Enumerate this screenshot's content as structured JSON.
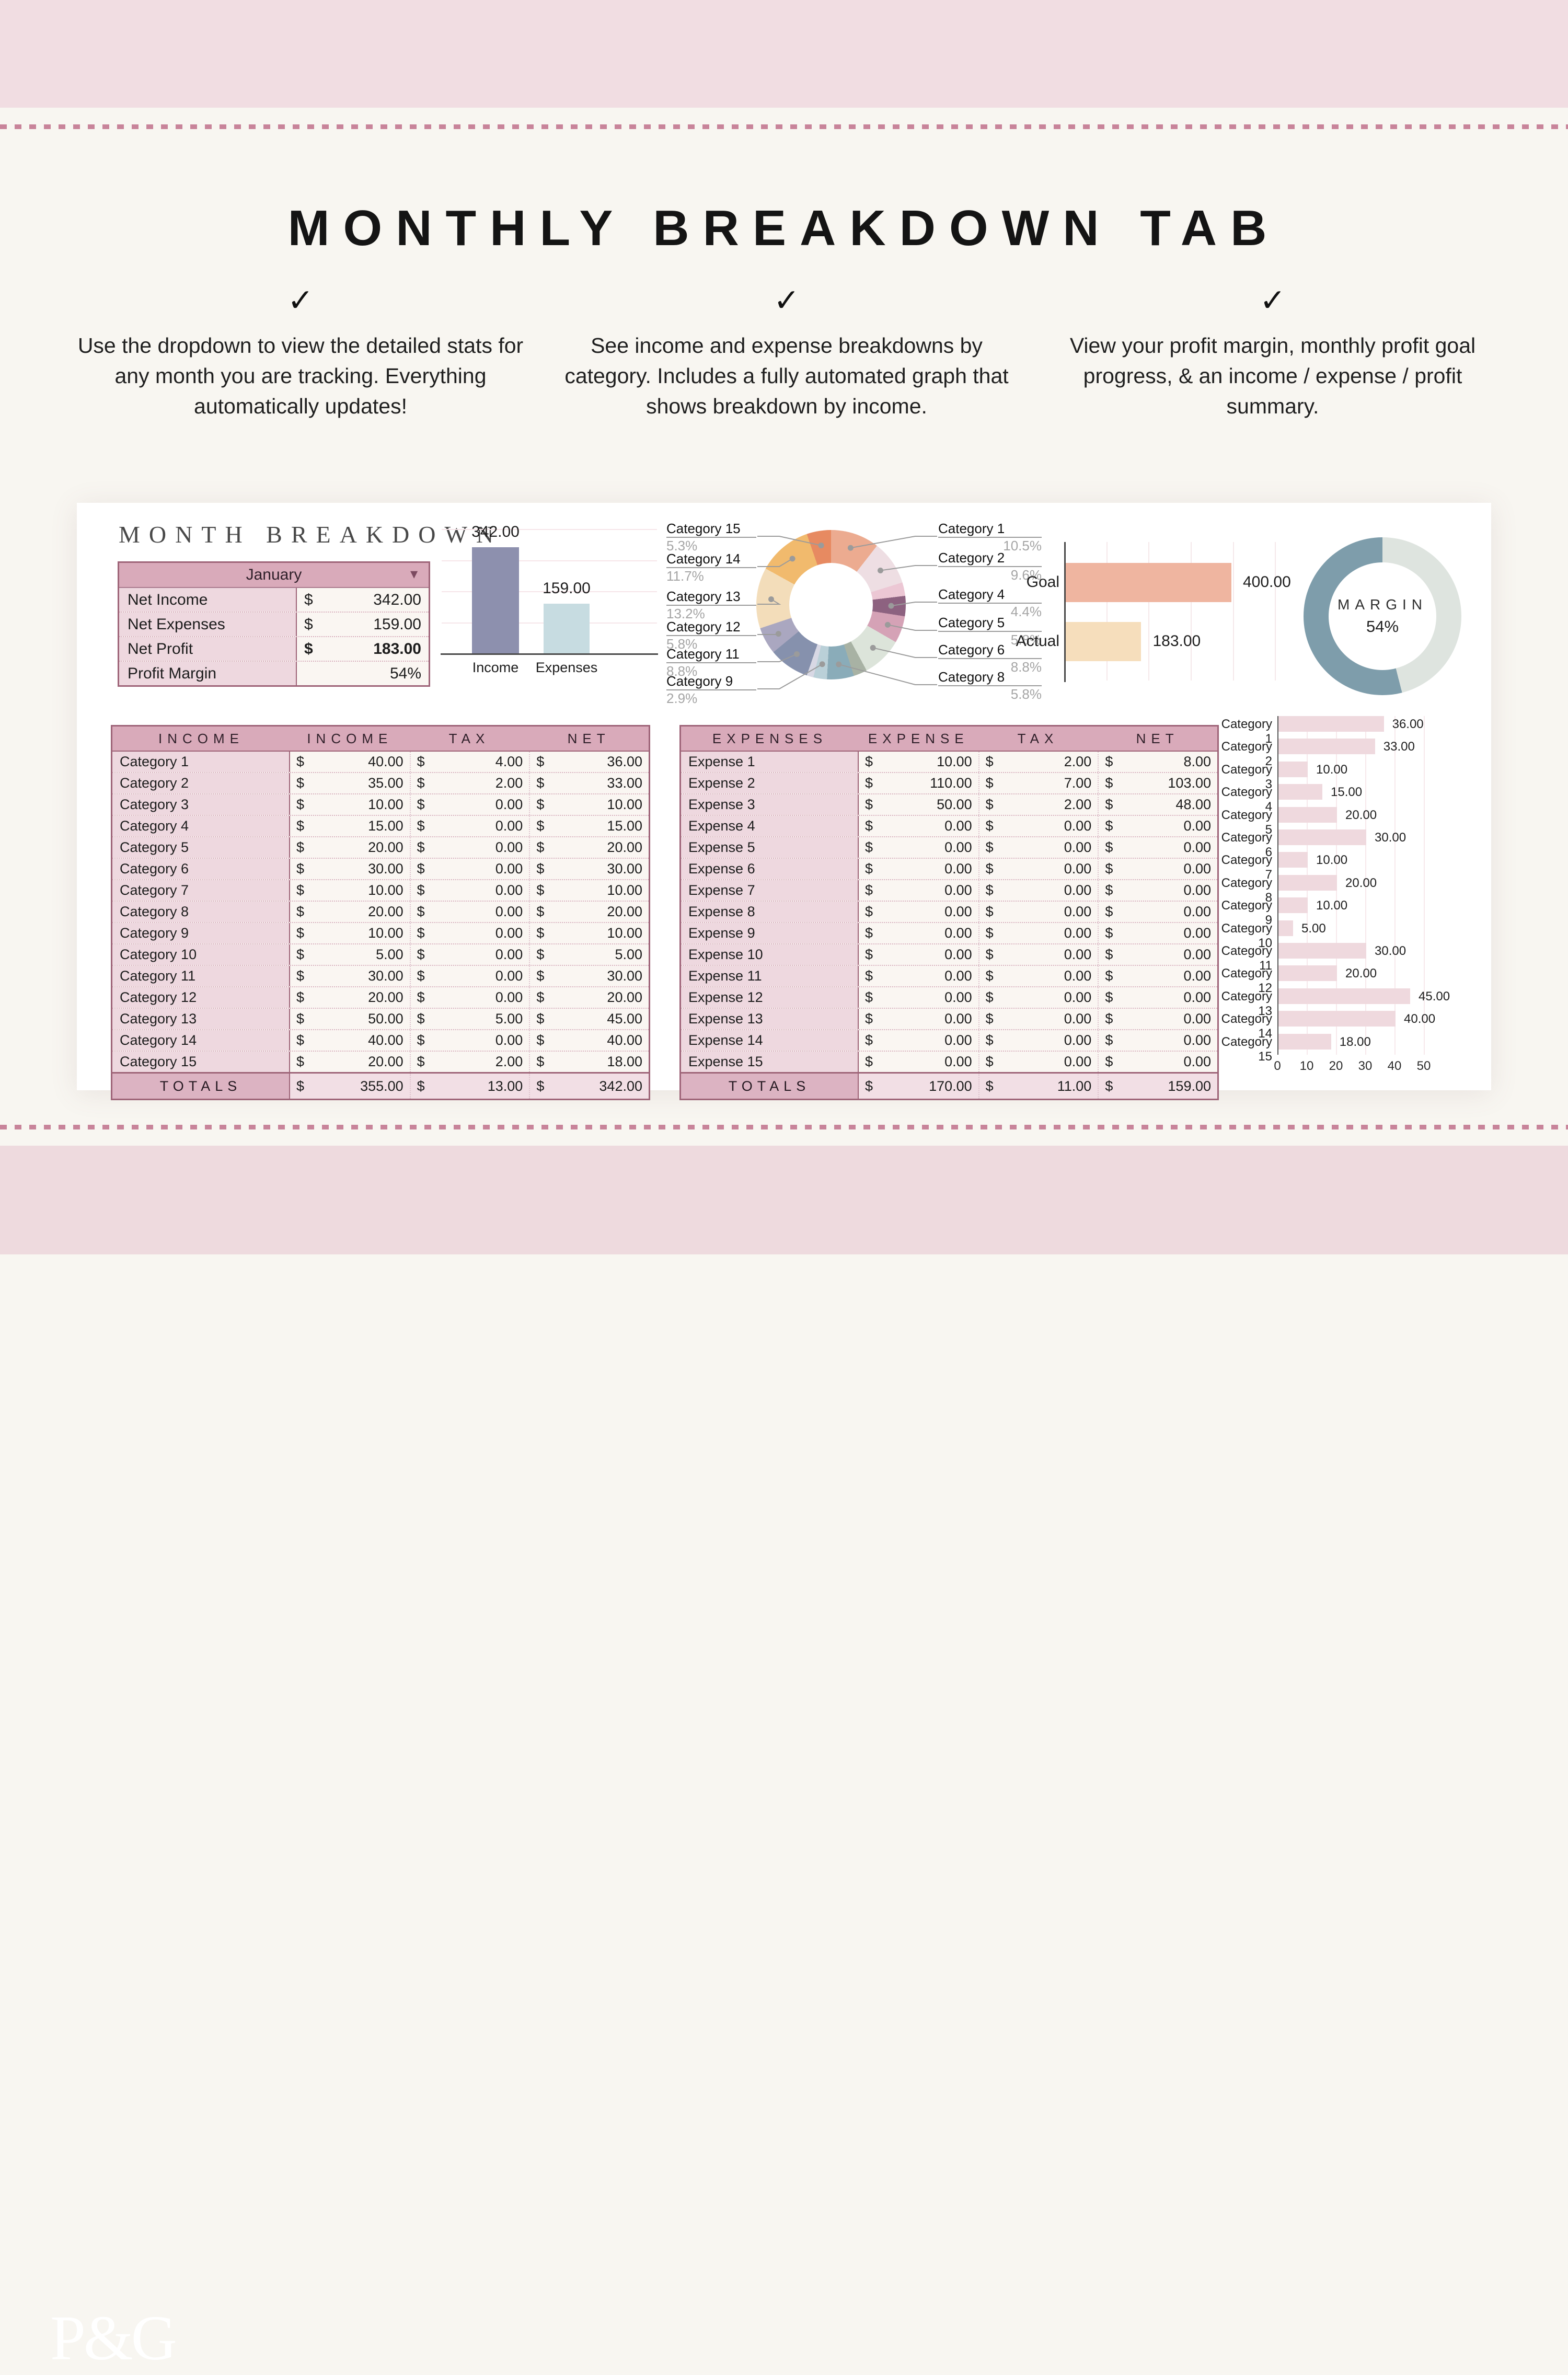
{
  "icons": {
    "check": "✓",
    "dropdown_caret": "▼"
  },
  "header": {
    "title": "MONTHLY BREAKDOWN TAB"
  },
  "features": [
    {
      "text": "Use the dropdown to view the detailed stats for any month you are tracking. Everything automatically updates!"
    },
    {
      "text": "See income and expense breakdowns by category. Includes a fully automated graph that shows breakdown by income."
    },
    {
      "text": "View your profit margin, monthly profit goal progress, & an income / expense / profit summary."
    }
  ],
  "sheet": {
    "title": "MONTH BREAKDOWN",
    "summary": {
      "month": "January",
      "rows": [
        {
          "label": "Net Income",
          "prefix": "$",
          "value": "342.00",
          "bold": false
        },
        {
          "label": "Net Expenses",
          "prefix": "$",
          "value": "159.00",
          "bold": false
        },
        {
          "label": "Net Profit",
          "prefix": "$",
          "value": "183.00",
          "bold": true
        },
        {
          "label": "Profit Margin",
          "prefix": "",
          "value": "54%",
          "bold": false
        }
      ]
    },
    "income_table": {
      "currency": "$",
      "headers": [
        "INCOME",
        "INCOME",
        "TAX",
        "NET"
      ],
      "rows": [
        {
          "label": "Category 1",
          "amounts": [
            "40.00",
            "4.00",
            "36.00"
          ]
        },
        {
          "label": "Category 2",
          "amounts": [
            "35.00",
            "2.00",
            "33.00"
          ]
        },
        {
          "label": "Category 3",
          "amounts": [
            "10.00",
            "0.00",
            "10.00"
          ]
        },
        {
          "label": "Category 4",
          "amounts": [
            "15.00",
            "0.00",
            "15.00"
          ]
        },
        {
          "label": "Category 5",
          "amounts": [
            "20.00",
            "0.00",
            "20.00"
          ]
        },
        {
          "label": "Category 6",
          "amounts": [
            "30.00",
            "0.00",
            "30.00"
          ]
        },
        {
          "label": "Category 7",
          "amounts": [
            "10.00",
            "0.00",
            "10.00"
          ]
        },
        {
          "label": "Category 8",
          "amounts": [
            "20.00",
            "0.00",
            "20.00"
          ]
        },
        {
          "label": "Category 9",
          "amounts": [
            "10.00",
            "0.00",
            "10.00"
          ]
        },
        {
          "label": "Category 10",
          "amounts": [
            "5.00",
            "0.00",
            "5.00"
          ]
        },
        {
          "label": "Category 11",
          "amounts": [
            "30.00",
            "0.00",
            "30.00"
          ]
        },
        {
          "label": "Category 12",
          "amounts": [
            "20.00",
            "0.00",
            "20.00"
          ]
        },
        {
          "label": "Category 13",
          "amounts": [
            "50.00",
            "5.00",
            "45.00"
          ]
        },
        {
          "label": "Category 14",
          "amounts": [
            "40.00",
            "0.00",
            "40.00"
          ]
        },
        {
          "label": "Category 15",
          "amounts": [
            "20.00",
            "2.00",
            "18.00"
          ]
        }
      ],
      "totals": {
        "label": "TOTALS",
        "amounts": [
          "355.00",
          "13.00",
          "342.00"
        ]
      }
    },
    "expense_table": {
      "currency": "$",
      "headers": [
        "EXPENSES",
        "EXPENSE",
        "TAX",
        "NET"
      ],
      "rows": [
        {
          "label": "Expense 1",
          "amounts": [
            "10.00",
            "2.00",
            "8.00"
          ]
        },
        {
          "label": "Expense 2",
          "amounts": [
            "110.00",
            "7.00",
            "103.00"
          ]
        },
        {
          "label": "Expense 3",
          "amounts": [
            "50.00",
            "2.00",
            "48.00"
          ]
        },
        {
          "label": "Expense 4",
          "amounts": [
            "0.00",
            "0.00",
            "0.00"
          ]
        },
        {
          "label": "Expense 5",
          "amounts": [
            "0.00",
            "0.00",
            "0.00"
          ]
        },
        {
          "label": "Expense 6",
          "amounts": [
            "0.00",
            "0.00",
            "0.00"
          ]
        },
        {
          "label": "Expense 7",
          "amounts": [
            "0.00",
            "0.00",
            "0.00"
          ]
        },
        {
          "label": "Expense 8",
          "amounts": [
            "0.00",
            "0.00",
            "0.00"
          ]
        },
        {
          "label": "Expense 9",
          "amounts": [
            "0.00",
            "0.00",
            "0.00"
          ]
        },
        {
          "label": "Expense 10",
          "amounts": [
            "0.00",
            "0.00",
            "0.00"
          ]
        },
        {
          "label": "Expense 11",
          "amounts": [
            "0.00",
            "0.00",
            "0.00"
          ]
        },
        {
          "label": "Expense 12",
          "amounts": [
            "0.00",
            "0.00",
            "0.00"
          ]
        },
        {
          "label": "Expense 13",
          "amounts": [
            "0.00",
            "0.00",
            "0.00"
          ]
        },
        {
          "label": "Expense 14",
          "amounts": [
            "0.00",
            "0.00",
            "0.00"
          ]
        },
        {
          "label": "Expense 15",
          "amounts": [
            "0.00",
            "0.00",
            "0.00"
          ]
        }
      ],
      "totals": {
        "label": "TOTALS",
        "amounts": [
          "170.00",
          "11.00",
          "159.00"
        ]
      }
    }
  },
  "chart_data": [
    {
      "id": "income_vs_expenses",
      "type": "bar",
      "categories": [
        "Income",
        "Expenses"
      ],
      "values": [
        342,
        159
      ],
      "value_labels": [
        "342.00",
        "159.00"
      ],
      "colors": [
        "#8d90ae",
        "#c7dce1"
      ],
      "ylim": [
        0,
        400
      ],
      "gridstep": 100,
      "grid": true
    },
    {
      "id": "net_income_donut",
      "type": "pie",
      "donut": true,
      "categories": [
        "Category 1",
        "Category 2",
        "Category 3",
        "Category 4",
        "Category 5",
        "Category 6",
        "Category 7",
        "Category 8",
        "Category 9",
        "Category 10",
        "Category 11",
        "Category 12",
        "Category 13",
        "Category 14",
        "Category 15"
      ],
      "values": [
        36,
        33,
        10,
        15,
        20,
        30,
        10,
        20,
        10,
        5,
        30,
        20,
        45,
        40,
        18
      ],
      "colors": [
        "#ecab90",
        "#eedee3",
        "#ecc7d4",
        "#8d6280",
        "#d5a2b6",
        "#dce4da",
        "#a8b2a4",
        "#8aacb9",
        "#bad0d8",
        "#d8d8e4",
        "#8691ad",
        "#aaa7c0",
        "#f3ddba",
        "#f1ba6d",
        "#e78a61"
      ],
      "labels_right": [
        {
          "slice": 0,
          "name": "Category 1",
          "pct": "10.5%"
        },
        {
          "slice": 1,
          "name": "Category 2",
          "pct": "9.6%"
        },
        {
          "slice": 3,
          "name": "Category 4",
          "pct": "4.4%"
        },
        {
          "slice": 4,
          "name": "Category 5",
          "pct": "5.8%"
        },
        {
          "slice": 5,
          "name": "Category 6",
          "pct": "8.8%"
        },
        {
          "slice": 7,
          "name": "Category 8",
          "pct": "5.8%"
        }
      ],
      "labels_left": [
        {
          "slice": 14,
          "name": "Category 15",
          "pct": "5.3%"
        },
        {
          "slice": 13,
          "name": "Category 14",
          "pct": "11.7%"
        },
        {
          "slice": 12,
          "name": "Category 13",
          "pct": "13.2%"
        },
        {
          "slice": 11,
          "name": "Category 12",
          "pct": "5.8%"
        },
        {
          "slice": 10,
          "name": "Category 11",
          "pct": "8.8%"
        },
        {
          "slice": 8,
          "name": "Category 9",
          "pct": "2.9%"
        }
      ]
    },
    {
      "id": "goal_progress",
      "type": "bar",
      "orientation": "horizontal",
      "categories": [
        "Goal",
        "Actual"
      ],
      "values": [
        400,
        183
      ],
      "value_labels": [
        "400.00",
        "183.00"
      ],
      "colors": [
        "#efb5a0",
        "#f6debc"
      ],
      "xlim": [
        0,
        500
      ],
      "gridstep": 100,
      "grid": true
    },
    {
      "id": "profit_margin_donut",
      "type": "pie",
      "donut": true,
      "label": "MARGIN",
      "value_label": "54%",
      "value_pct": 54,
      "colors": {
        "filled": "#7e9dab",
        "rest": "#dee4df"
      }
    },
    {
      "id": "net_by_category",
      "type": "bar",
      "orientation": "horizontal",
      "categories": [
        "Category 1",
        "Category 2",
        "Category 3",
        "Category 4",
        "Category 5",
        "Category 6",
        "Category 7",
        "Category 8",
        "Category 9",
        "Category 10",
        "Category 11",
        "Category 12",
        "Category 13",
        "Category 14",
        "Category 15"
      ],
      "values": [
        36,
        33,
        10,
        15,
        20,
        30,
        10,
        20,
        10,
        5,
        30,
        20,
        45,
        40,
        18
      ],
      "value_labels": [
        "36.00",
        "33.00",
        "10.00",
        "15.00",
        "20.00",
        "30.00",
        "10.00",
        "20.00",
        "10.00",
        "5.00",
        "30.00",
        "20.00",
        "45.00",
        "40.00",
        "18.00"
      ],
      "color": "#efd9de",
      "xlim": [
        0,
        50
      ],
      "ticks": [
        "0",
        "10",
        "20",
        "30",
        "40",
        "50"
      ],
      "grid": true
    }
  ],
  "footer": {
    "logo": "P&G"
  }
}
